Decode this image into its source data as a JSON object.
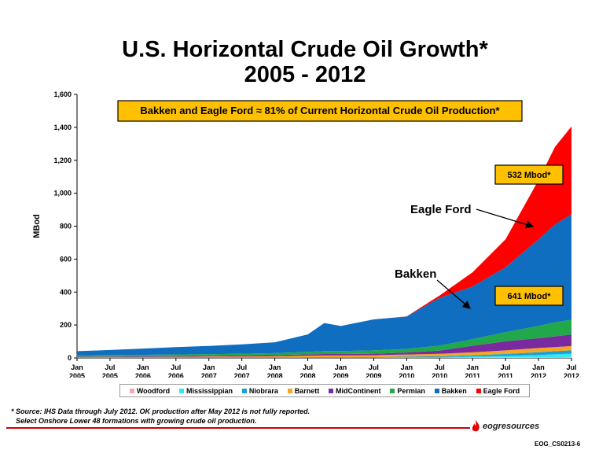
{
  "title": "U.S. Horizontal Crude Oil Growth*",
  "subtitle": "2005 - 2012",
  "colors": {
    "Woodford": "#f4a6b4",
    "Mississippian": "#2fe8f2",
    "Niobrara": "#1a9fd6",
    "Barnett": "#f5a623",
    "MidContinent": "#7a2a9e",
    "Permian": "#20a84a",
    "Bakken": "#0f6ec0",
    "Eagle Ford": "#ff0000",
    "callout_fill": "#ffc000"
  },
  "annotations": {
    "header_box": "Bakken and Eagle Ford ≈ 81% of Current Horizontal Crude Oil Production*",
    "eagle_ford_value": "532 Mbod*",
    "bakken_value": "641 Mbod*",
    "eagle_ford_label": "Eagle Ford",
    "bakken_label": "Bakken"
  },
  "footnotes": [
    "* Source: IHS Data through July 2012. OK production after May 2012 is not fully reported.",
    "Select Onshore Lower 48 formations with growing crude oil production."
  ],
  "logo_text": "eogresources",
  "slide_id": "EOG_CS0213-6",
  "chart_data": {
    "type": "area",
    "stacked": true,
    "ylabel": "MBod",
    "ylim": [
      0,
      1600
    ],
    "yticks": [
      "0",
      "200",
      "400",
      "600",
      "800",
      "1,000",
      "1,200",
      "1,400",
      "1,600"
    ],
    "xlim": [
      "2005-01",
      "2012-07"
    ],
    "xticks": [
      {
        "month": "Jan",
        "year": "2005"
      },
      {
        "month": "Jul",
        "year": "2005"
      },
      {
        "month": "Jan",
        "year": "2006"
      },
      {
        "month": "Jul",
        "year": "2006"
      },
      {
        "month": "Jan",
        "year": "2007"
      },
      {
        "month": "Jul",
        "year": "2007"
      },
      {
        "month": "Jan",
        "year": "2008"
      },
      {
        "month": "Jul",
        "year": "2008"
      },
      {
        "month": "Jan",
        "year": "2009"
      },
      {
        "month": "Jul",
        "year": "2009"
      },
      {
        "month": "Jan",
        "year": "2010"
      },
      {
        "month": "Jul",
        "year": "2010"
      },
      {
        "month": "Jan",
        "year": "2011"
      },
      {
        "month": "Jul",
        "year": "2011"
      },
      {
        "month": "Jan",
        "year": "2012"
      },
      {
        "month": "Jul",
        "year": "2012"
      }
    ],
    "x": [
      "2005-01",
      "2005-07",
      "2006-01",
      "2006-07",
      "2007-01",
      "2007-07",
      "2008-01",
      "2008-07",
      "2008-10",
      "2009-01",
      "2009-07",
      "2010-01",
      "2010-07",
      "2011-01",
      "2011-07",
      "2012-01",
      "2012-04",
      "2012-07"
    ],
    "series": [
      {
        "name": "Woodford",
        "values": [
          0,
          0,
          0,
          0,
          0,
          0,
          0,
          1,
          1,
          1,
          1,
          2,
          2,
          3,
          4,
          5,
          5,
          6
        ]
      },
      {
        "name": "Mississippian",
        "values": [
          1,
          1,
          1,
          1,
          1,
          1,
          1,
          2,
          2,
          2,
          2,
          3,
          3,
          5,
          8,
          12,
          18,
          20
        ]
      },
      {
        "name": "Niobrara",
        "values": [
          2,
          2,
          2,
          2,
          2,
          2,
          2,
          2,
          2,
          2,
          2,
          3,
          5,
          8,
          12,
          18,
          18,
          20
        ]
      },
      {
        "name": "Barnett",
        "values": [
          2,
          3,
          3,
          4,
          5,
          6,
          7,
          9,
          10,
          10,
          11,
          13,
          15,
          18,
          22,
          25,
          25,
          26
        ]
      },
      {
        "name": "MidContinent",
        "values": [
          3,
          3,
          4,
          4,
          5,
          6,
          7,
          8,
          9,
          9,
          10,
          12,
          20,
          40,
          55,
          60,
          65,
          70
        ]
      },
      {
        "name": "Permian",
        "values": [
          8,
          9,
          9,
          10,
          10,
          11,
          12,
          15,
          18,
          18,
          20,
          22,
          30,
          40,
          55,
          75,
          85,
          90
        ]
      },
      {
        "name": "Bakken",
        "values": [
          25,
          30,
          38,
          45,
          50,
          56,
          66,
          106,
          170,
          152,
          188,
          196,
          290,
          320,
          394,
          525,
          595,
          641
        ]
      },
      {
        "name": "Eagle Ford",
        "values": [
          0,
          0,
          0,
          0,
          0,
          0,
          0,
          0,
          0,
          0,
          0,
          1,
          14,
          86,
          170,
          360,
          470,
          532
        ]
      }
    ]
  }
}
